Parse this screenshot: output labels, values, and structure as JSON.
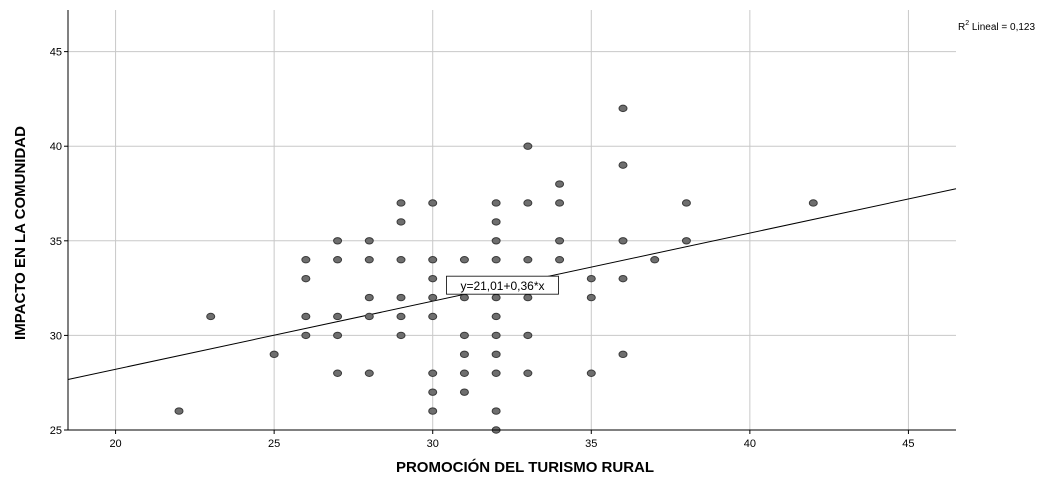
{
  "chart_data": {
    "type": "scatter",
    "xlabel": "PROMOCIÓN DEL TURISMO RURAL",
    "ylabel": "IMPACTO EN LA COMUNIDAD",
    "xlim": [
      18.5,
      46.5
    ],
    "ylim": [
      25,
      47.2
    ],
    "xticks": [
      "20",
      "25",
      "30",
      "35",
      "40",
      "45"
    ],
    "yticks": [
      "25",
      "30",
      "35",
      "40",
      "45"
    ],
    "grid": true,
    "r2_label": {
      "prefix": "R",
      "sup": "2",
      "suffix": " Lineal = 0,123"
    },
    "fit_line": {
      "equation": "y=21,01+0,36*x",
      "intercept": 21.01,
      "slope": 0.36
    },
    "marker_color": "#6e6e6e",
    "points": [
      [
        22,
        26
      ],
      [
        23,
        31
      ],
      [
        25,
        29
      ],
      [
        26,
        34
      ],
      [
        26,
        33
      ],
      [
        26,
        31
      ],
      [
        26,
        30
      ],
      [
        27,
        35
      ],
      [
        27,
        34
      ],
      [
        27,
        31
      ],
      [
        27,
        30
      ],
      [
        27,
        28
      ],
      [
        28,
        35
      ],
      [
        28,
        34
      ],
      [
        28,
        32
      ],
      [
        28,
        31
      ],
      [
        28,
        28
      ],
      [
        29,
        37
      ],
      [
        29,
        36
      ],
      [
        29,
        34
      ],
      [
        29,
        32
      ],
      [
        29,
        31
      ],
      [
        29,
        30
      ],
      [
        30,
        37
      ],
      [
        30,
        34
      ],
      [
        30,
        33
      ],
      [
        30,
        32
      ],
      [
        30,
        31
      ],
      [
        30,
        28
      ],
      [
        30,
        27
      ],
      [
        30,
        26
      ],
      [
        31,
        34
      ],
      [
        31,
        32
      ],
      [
        31,
        30
      ],
      [
        31,
        29
      ],
      [
        31,
        28
      ],
      [
        31,
        27
      ],
      [
        32,
        37
      ],
      [
        32,
        36
      ],
      [
        32,
        35
      ],
      [
        32,
        34
      ],
      [
        32,
        32
      ],
      [
        32,
        31
      ],
      [
        32,
        30
      ],
      [
        32,
        29
      ],
      [
        32,
        28
      ],
      [
        32,
        26
      ],
      [
        32,
        25
      ],
      [
        33,
        40
      ],
      [
        33,
        37
      ],
      [
        33,
        34
      ],
      [
        33,
        32
      ],
      [
        33,
        30
      ],
      [
        33,
        28
      ],
      [
        34,
        38
      ],
      [
        34,
        37
      ],
      [
        34,
        35
      ],
      [
        34,
        34
      ],
      [
        35,
        33
      ],
      [
        35,
        32
      ],
      [
        35,
        28
      ],
      [
        36,
        42
      ],
      [
        36,
        39
      ],
      [
        36,
        35
      ],
      [
        36,
        33
      ],
      [
        36,
        29
      ],
      [
        37,
        34
      ],
      [
        38,
        37
      ],
      [
        38,
        35
      ],
      [
        42,
        37
      ]
    ]
  }
}
